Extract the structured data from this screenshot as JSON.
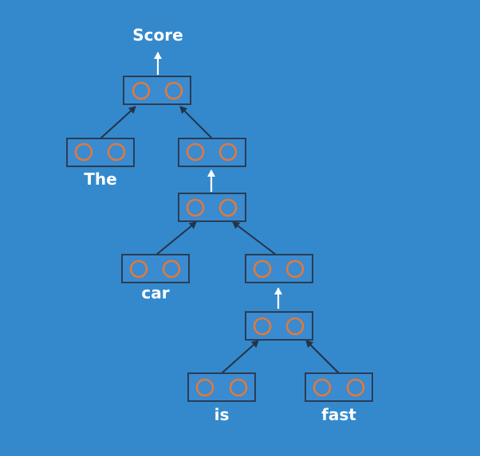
{
  "labels": {
    "score": "Score",
    "the": "The",
    "car": "car",
    "is": "is",
    "fast": "fast"
  },
  "colors": {
    "background": "#3489cc",
    "node_outline": "#2a3d55",
    "neuron": "#e0793c",
    "arrow": "#233349",
    "label": "#ffffff"
  },
  "tree": {
    "nodes": [
      "root",
      "the",
      "car_fast",
      "car_fast_comb",
      "car",
      "is_fast",
      "is_fast_comb",
      "is",
      "fast"
    ],
    "edges": [
      [
        "the",
        "root"
      ],
      [
        "car_fast",
        "root"
      ],
      [
        "car_fast_comb",
        "car_fast"
      ],
      [
        "car",
        "car_fast_comb"
      ],
      [
        "is_fast",
        "car_fast_comb"
      ],
      [
        "is_fast_comb",
        "is_fast"
      ],
      [
        "is",
        "is_fast_comb"
      ],
      [
        "fast",
        "is_fast_comb"
      ]
    ]
  }
}
